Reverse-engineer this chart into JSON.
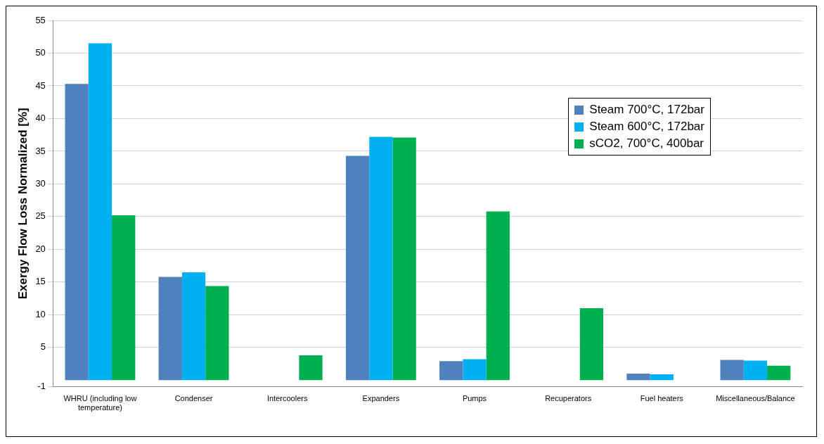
{
  "chart_data": {
    "type": "bar",
    "ylabel": "Exergy Flow Loss Normalized [%]",
    "categories": [
      "WHRU (including low temperature)",
      "Condenser",
      "Intercoolers",
      "Expanders",
      "Pumps",
      "Recuperators",
      "Fuel heaters",
      "Miscellaneous/Balance"
    ],
    "series": [
      {
        "name": "Steam 700°C, 172bar",
        "color": "#4f81bd",
        "values": [
          45.3,
          15.8,
          null,
          34.3,
          2.9,
          null,
          1.0,
          3.1
        ]
      },
      {
        "name": "Steam 600°C, 172bar",
        "color": "#00b0f0",
        "values": [
          51.5,
          16.5,
          null,
          37.2,
          3.2,
          null,
          0.9,
          3.0
        ]
      },
      {
        "name": "sCO2, 700°C, 400bar",
        "color": "#00b050",
        "values": [
          25.2,
          14.4,
          3.8,
          37.1,
          25.8,
          11.0,
          null,
          2.2
        ]
      }
    ],
    "ylim": [
      -1,
      55
    ],
    "yticks": [
      -1,
      5,
      10,
      15,
      20,
      25,
      30,
      35,
      40,
      45,
      50,
      55
    ],
    "grid": "y",
    "legend": "top right"
  }
}
